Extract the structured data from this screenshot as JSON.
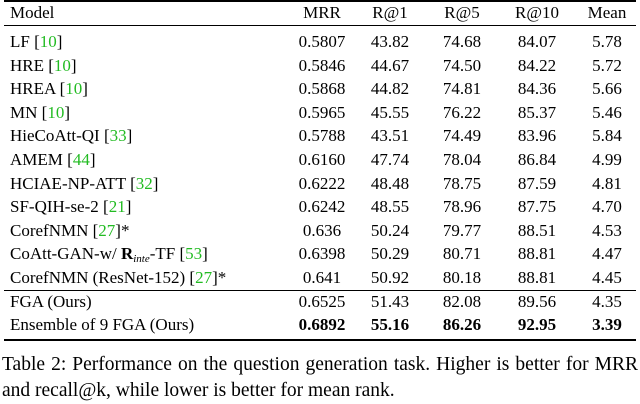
{
  "table": {
    "header": [
      "Model",
      "MRR",
      "R@1",
      "R@5",
      "R@10",
      "Mean"
    ],
    "rows": [
      {
        "model": [
          {
            "text": "LF ["
          },
          {
            "text": "10",
            "style": "link"
          },
          {
            "text": "]"
          }
        ],
        "cells": [
          "0.5807",
          "43.82",
          "74.68",
          "84.07",
          "5.78"
        ]
      },
      {
        "model": [
          {
            "text": "HRE ["
          },
          {
            "text": "10",
            "style": "link"
          },
          {
            "text": "]"
          }
        ],
        "cells": [
          "0.5846",
          "44.67",
          "74.50",
          "84.22",
          "5.72"
        ]
      },
      {
        "model": [
          {
            "text": "HREA ["
          },
          {
            "text": "10",
            "style": "link"
          },
          {
            "text": "]"
          }
        ],
        "cells": [
          "0.5868",
          "44.82",
          "74.81",
          "84.36",
          "5.66"
        ]
      },
      {
        "model": [
          {
            "text": "MN ["
          },
          {
            "text": "10",
            "style": "link"
          },
          {
            "text": "]"
          }
        ],
        "cells": [
          "0.5965",
          "45.55",
          "76.22",
          "85.37",
          "5.46"
        ]
      },
      {
        "model": [
          {
            "text": "HieCoAtt-QI ["
          },
          {
            "text": "33",
            "style": "link"
          },
          {
            "text": "]"
          }
        ],
        "cells": [
          "0.5788",
          "43.51",
          "74.49",
          "83.96",
          "5.84"
        ]
      },
      {
        "model": [
          {
            "text": "AMEM ["
          },
          {
            "text": "44",
            "style": "link"
          },
          {
            "text": "]"
          }
        ],
        "cells": [
          "0.6160",
          "47.74",
          "78.04",
          "86.84",
          "4.99"
        ]
      },
      {
        "model": [
          {
            "text": "HCIAE-NP-ATT ["
          },
          {
            "text": "32",
            "style": "link"
          },
          {
            "text": "]"
          }
        ],
        "cells": [
          "0.6222",
          "48.48",
          "78.75",
          "87.59",
          "4.81"
        ]
      },
      {
        "model": [
          {
            "text": "SF-QIH-se-2 ["
          },
          {
            "text": "21",
            "style": "link"
          },
          {
            "text": "]"
          }
        ],
        "cells": [
          "0.6242",
          "48.55",
          "78.96",
          "87.75",
          "4.70"
        ]
      },
      {
        "model": [
          {
            "text": "CorefNMN ["
          },
          {
            "text": "27",
            "style": "link"
          },
          {
            "text": "]*"
          }
        ],
        "cells": [
          "0.636",
          "50.24",
          "79.77",
          "88.51",
          "4.53"
        ]
      },
      {
        "model": [
          {
            "text": "CoAtt-GAN-w/ "
          },
          {
            "text": "R",
            "style": "bold"
          },
          {
            "text": "inte",
            "style": "sub"
          },
          {
            "text": "-TF ["
          },
          {
            "text": "53",
            "style": "link"
          },
          {
            "text": "]"
          }
        ],
        "cells": [
          "0.6398",
          "50.29",
          "80.71",
          "88.81",
          "4.47"
        ]
      },
      {
        "model": [
          {
            "text": "CorefNMN (ResNet-152) ["
          },
          {
            "text": "27",
            "style": "link"
          },
          {
            "text": "]*"
          }
        ],
        "cells": [
          "0.641",
          "50.92",
          "80.18",
          "88.81",
          "4.45"
        ]
      },
      {
        "model": [
          {
            "text": "FGA (Ours)"
          }
        ],
        "cells": [
          "0.6525",
          "51.43",
          "82.08",
          "89.56",
          "4.35"
        ]
      },
      {
        "model": [
          {
            "text": "Ensemble of 9 FGA (Ours)"
          }
        ],
        "cells": [
          "0.6892",
          "55.16",
          "86.26",
          "92.95",
          "3.39"
        ],
        "bold": true
      }
    ],
    "caption": "Table 2: Performance on the question generation task. Higher is better for MRR and recall@k, while lower is better for mean rank."
  }
}
